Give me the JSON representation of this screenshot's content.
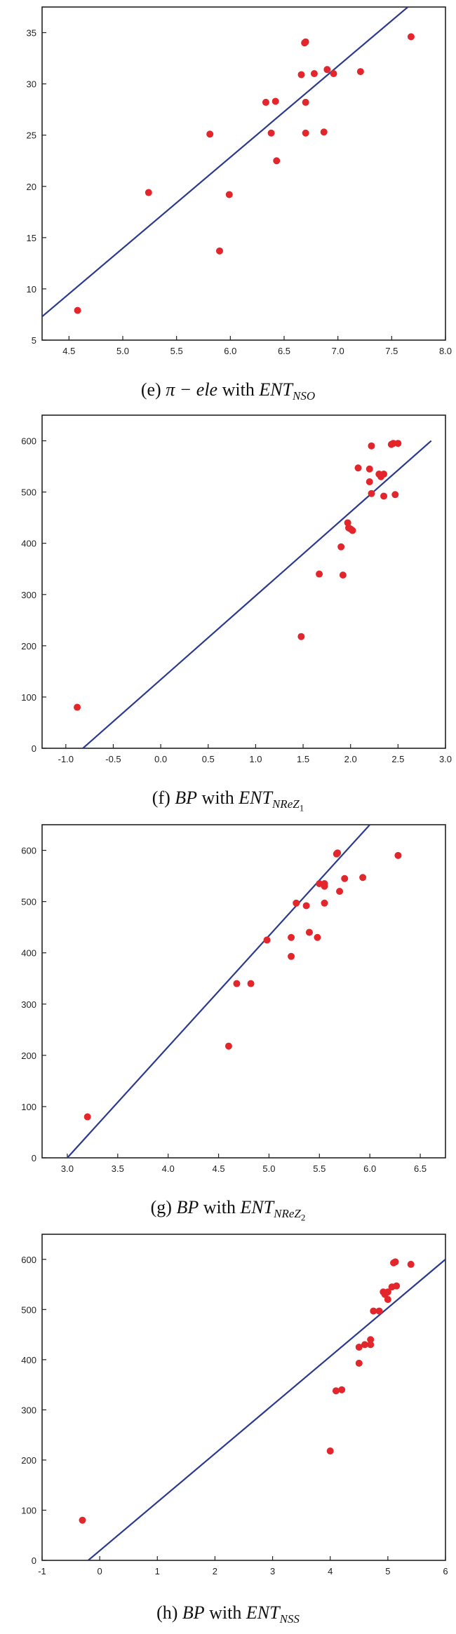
{
  "chart_data": [
    {
      "type": "scatter",
      "caption": {
        "label": "(e)",
        "lhs": "π − ele",
        "with": "with",
        "rhs_main": "ENT",
        "rhs_sub": "NSO",
        "rhs_subsub": ""
      },
      "xlim": [
        4.25,
        8.0
      ],
      "ylim": [
        5,
        37.5
      ],
      "x_ticks": [
        "4.5",
        "5.0",
        "5.5",
        "6.0",
        "6.5",
        "7.0",
        "7.5",
        "8.0"
      ],
      "x_tick_values": [
        4.5,
        5.0,
        5.5,
        6.0,
        6.5,
        7.0,
        7.5,
        8.0
      ],
      "y_ticks": [
        "5",
        "10",
        "15",
        "20",
        "25",
        "30",
        "35"
      ],
      "y_tick_values": [
        5,
        10,
        15,
        20,
        25,
        30,
        35
      ],
      "points": [
        [
          4.58,
          7.9
        ],
        [
          5.24,
          19.4
        ],
        [
          5.81,
          25.1
        ],
        [
          5.9,
          13.7
        ],
        [
          5.99,
          19.2
        ],
        [
          6.33,
          28.2
        ],
        [
          6.38,
          25.2
        ],
        [
          6.42,
          28.3
        ],
        [
          6.43,
          22.5
        ],
        [
          6.66,
          30.9
        ],
        [
          6.69,
          34.0
        ],
        [
          6.7,
          34.1
        ],
        [
          6.7,
          28.2
        ],
        [
          6.7,
          25.2
        ],
        [
          6.78,
          31.0
        ],
        [
          6.87,
          25.3
        ],
        [
          6.9,
          31.4
        ],
        [
          6.96,
          31.0
        ],
        [
          7.21,
          31.2
        ],
        [
          7.68,
          34.6
        ]
      ],
      "fit_line": [
        [
          4.25,
          7.3
        ],
        [
          7.65,
          37.5
        ]
      ],
      "colors": {
        "points": "#e3262b",
        "line": "#2b3a8f",
        "axis": "#222222"
      }
    },
    {
      "type": "scatter",
      "caption": {
        "label": "(f)",
        "lhs": "BP",
        "with": "with",
        "rhs_main": "ENT",
        "rhs_sub": "NReZ",
        "rhs_subsub": "1"
      },
      "xlim": [
        -1.25,
        3.0
      ],
      "ylim": [
        0,
        650
      ],
      "x_ticks": [
        "-1.0",
        "-0.5",
        "0.0",
        "0.5",
        "1.0",
        "1.5",
        "2.0",
        "2.5",
        "3.0"
      ],
      "x_tick_values": [
        -1.0,
        -0.5,
        0.0,
        0.5,
        1.0,
        1.5,
        2.0,
        2.5,
        3.0
      ],
      "y_ticks": [
        "0",
        "100",
        "200",
        "300",
        "400",
        "500",
        "600"
      ],
      "y_tick_values": [
        0,
        100,
        200,
        300,
        400,
        500,
        600
      ],
      "points": [
        [
          -0.88,
          80
        ],
        [
          1.48,
          218
        ],
        [
          1.67,
          340
        ],
        [
          1.92,
          338
        ],
        [
          1.9,
          393
        ],
        [
          1.97,
          440
        ],
        [
          1.98,
          430
        ],
        [
          2.0,
          428
        ],
        [
          2.02,
          425
        ],
        [
          2.08,
          547
        ],
        [
          2.2,
          545
        ],
        [
          2.2,
          520
        ],
        [
          2.22,
          590
        ],
        [
          2.22,
          497
        ],
        [
          2.3,
          535
        ],
        [
          2.32,
          530
        ],
        [
          2.35,
          492
        ],
        [
          2.35,
          535
        ],
        [
          2.43,
          593
        ],
        [
          2.45,
          595
        ],
        [
          2.47,
          495
        ],
        [
          2.5,
          595
        ]
      ],
      "fit_line": [
        [
          -0.82,
          0
        ],
        [
          2.85,
          600
        ]
      ],
      "colors": {
        "points": "#e3262b",
        "line": "#2b3a8f",
        "axis": "#222222"
      }
    },
    {
      "type": "scatter",
      "caption": {
        "label": "(g)",
        "lhs": "BP",
        "with": "with",
        "rhs_main": "ENT",
        "rhs_sub": "NReZ",
        "rhs_subsub": "2"
      },
      "xlim": [
        2.75,
        6.75
      ],
      "ylim": [
        0,
        650
      ],
      "x_ticks": [
        "3.0",
        "3.5",
        "4.0",
        "4.5",
        "5.0",
        "5.5",
        "6.0",
        "6.5"
      ],
      "x_tick_values": [
        3.0,
        3.5,
        4.0,
        4.5,
        5.0,
        5.5,
        6.0,
        6.5
      ],
      "y_ticks": [
        "0",
        "100",
        "200",
        "300",
        "400",
        "500",
        "600"
      ],
      "y_tick_values": [
        0,
        100,
        200,
        300,
        400,
        500,
        600
      ],
      "points": [
        [
          3.2,
          80
        ],
        [
          4.6,
          218
        ],
        [
          4.68,
          340
        ],
        [
          4.82,
          340
        ],
        [
          4.98,
          425
        ],
        [
          5.22,
          393
        ],
        [
          5.22,
          430
        ],
        [
          5.27,
          497
        ],
        [
          5.37,
          492
        ],
        [
          5.4,
          440
        ],
        [
          5.48,
          430
        ],
        [
          5.5,
          535
        ],
        [
          5.55,
          497
        ],
        [
          5.55,
          530
        ],
        [
          5.55,
          535
        ],
        [
          5.67,
          593
        ],
        [
          5.68,
          595
        ],
        [
          5.7,
          520
        ],
        [
          5.75,
          545
        ],
        [
          5.93,
          547
        ],
        [
          6.28,
          590
        ]
      ],
      "fit_line": [
        [
          3.0,
          0
        ],
        [
          6.0,
          650
        ]
      ],
      "colors": {
        "points": "#e3262b",
        "line": "#2b3a8f",
        "axis": "#222222"
      }
    },
    {
      "type": "scatter",
      "caption": {
        "label": "(h)",
        "lhs": "BP",
        "with": "with",
        "rhs_main": "ENT",
        "rhs_sub": "NSS",
        "rhs_subsub": ""
      },
      "xlim": [
        -1,
        6
      ],
      "ylim": [
        0,
        650
      ],
      "x_ticks": [
        "-1",
        "0",
        "1",
        "2",
        "3",
        "4",
        "5",
        "6"
      ],
      "x_tick_values": [
        -1,
        0,
        1,
        2,
        3,
        4,
        5,
        6
      ],
      "y_ticks": [
        "0",
        "100",
        "200",
        "300",
        "400",
        "500",
        "600"
      ],
      "y_tick_values": [
        0,
        100,
        200,
        300,
        400,
        500,
        600
      ],
      "points": [
        [
          -0.3,
          80
        ],
        [
          4.0,
          218
        ],
        [
          4.1,
          338
        ],
        [
          4.2,
          340
        ],
        [
          4.5,
          393
        ],
        [
          4.5,
          425
        ],
        [
          4.6,
          430
        ],
        [
          4.7,
          440
        ],
        [
          4.7,
          430
        ],
        [
          4.75,
          497
        ],
        [
          4.85,
          497
        ],
        [
          4.92,
          535
        ],
        [
          4.95,
          530
        ],
        [
          5.0,
          535
        ],
        [
          5.0,
          520
        ],
        [
          5.07,
          545
        ],
        [
          5.1,
          593
        ],
        [
          5.13,
          595
        ],
        [
          5.15,
          547
        ],
        [
          5.4,
          590
        ]
      ],
      "fit_line": [
        [
          -0.2,
          0
        ],
        [
          6.0,
          600
        ]
      ],
      "colors": {
        "points": "#e3262b",
        "line": "#2b3a8f",
        "axis": "#222222"
      }
    }
  ]
}
